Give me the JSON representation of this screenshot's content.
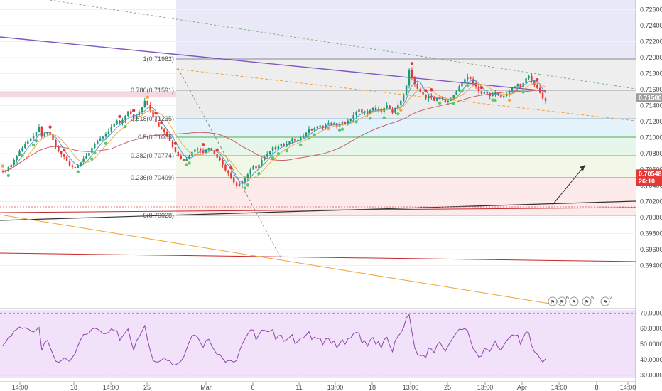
{
  "chart_data": {
    "type": "candlestick",
    "x_axis": {
      "labels": [
        "14:00",
        "18",
        "14:00",
        "25",
        "Mar",
        "6",
        "11",
        "13:00",
        "18",
        "13:00",
        "25",
        "13:00",
        "Apr",
        "14:00",
        "8",
        "14:00"
      ]
    },
    "price_axis": {
      "range": [
        0.6888,
        0.7272
      ],
      "ticks": [
        0.726,
        0.724,
        0.722,
        0.72,
        0.718,
        0.716,
        0.714,
        0.712,
        0.71,
        0.708,
        0.706,
        0.704,
        0.702,
        0.7,
        0.698,
        0.696,
        0.694
      ],
      "decimals": 5
    },
    "rsi_axis": {
      "range": [
        28,
        72
      ],
      "ticks": [
        70.0,
        60.0,
        50.0,
        40.0,
        30.0
      ],
      "labels": [
        "70.0000",
        "60.0000",
        "50.0000",
        "40.0000",
        "30.0000"
      ]
    },
    "price_tags": [
      {
        "price": 0.715,
        "text": "0.71500",
        "color": "#9e9e9e"
      },
      {
        "price": 0.70548,
        "text": "0.70548",
        "color": "#e53935"
      },
      {
        "price": 0.70452,
        "text": "26:10",
        "color": "#e53935"
      }
    ],
    "fibonacci": {
      "levels": [
        {
          "ratio": "1",
          "price": 0.71982,
          "label": "1(0.71982)"
        },
        {
          "ratio": "0.786",
          "price": 0.71591,
          "label": "0.786(0.71591)"
        },
        {
          "ratio": "0.618",
          "price": 0.71235,
          "label": "0.618(0.71235)"
        },
        {
          "ratio": "0.5",
          "price": 0.71005,
          "label": "0.5(0.71005)"
        },
        {
          "ratio": "0.382",
          "price": 0.70774,
          "label": "0.382(0.70774)"
        },
        {
          "ratio": "0.236",
          "price": 0.70499,
          "label": "0.236(0.70499)"
        },
        {
          "ratio": "0",
          "price": 0.70028,
          "label": "0(0.70028)"
        }
      ]
    },
    "candles": {
      "start": 0.7058,
      "bias": [
        -0.0001,
        0.0002,
        0.0004,
        0.0003,
        0.0006,
        0.0005,
        0.0006,
        0.0004,
        0.0005,
        0.0004,
        0.0003,
        0.0003,
        0.0005,
        0.0006,
        -0.0012,
        0.0004,
        0.0002,
        -0.0004,
        -0.0006,
        -0.0008,
        -0.0006,
        -0.0004,
        -0.0003,
        -0.0005,
        -0.0006,
        -0.0002,
        -0.0001,
        0.0003,
        0.0004,
        0.0005,
        0.0003,
        0.0004,
        0.0006,
        0.0005,
        0.0004,
        0.0003,
        0.0002,
        0.0003,
        0.0004,
        0.0006,
        0.0003,
        0.0004,
        -0.0003,
        0.0004,
        0.0005,
        0.0006,
        -0.0004,
        -0.0006,
        0.0005,
        0.0004,
        0.0006,
        0.0008,
        -0.0005,
        -0.0007,
        -0.0009,
        -0.0006,
        -0.0005,
        -0.0004,
        -0.0003,
        -0.0006,
        -0.0005,
        -0.0008,
        -0.0006,
        -0.0005,
        -0.0004,
        -0.0002,
        0.0002,
        0.0004,
        0.0005,
        0.0003,
        0.0001,
        -0.0002,
        -0.0003,
        0.0004,
        0.0002,
        -0.0003,
        -0.0004,
        -0.0005,
        -0.0003,
        -0.0006,
        -0.0007,
        -0.0004,
        -0.0005,
        -0.0006,
        -0.0004,
        0.0002,
        0.0003,
        0.0004,
        0.0005,
        0.0006,
        0.0004,
        -0.0003,
        0.0005,
        0.0006,
        0.0004,
        0.0003,
        0.0004,
        0.0005,
        -0.0003,
        0.0004,
        0.0003,
        -0.0002,
        0.0002,
        0.0003,
        0.0004,
        -0.0004,
        0.0002,
        0.0003,
        0.0002,
        0.0004,
        0.0005,
        -0.0002,
        0.0003,
        0.0001,
        0.0002,
        -0.0003,
        0.0004,
        0.0002,
        -0.0002,
        0.0002,
        -0.0004,
        0.0002,
        0.0003,
        -0.0002,
        0.0004,
        0.0002,
        0.0005,
        0.0004,
        0.0003,
        -0.0004,
        0.0002,
        -0.0003,
        0.0004,
        0.0003,
        -0.0003,
        0.0002,
        -0.0004,
        0.0005,
        0.0003,
        -0.0004,
        -0.0005,
        0.0006,
        0.0004,
        0.0005,
        0.0007,
        0.0012,
        0.002,
        -0.001,
        -0.0008,
        -0.0006,
        -0.0004,
        -0.0003,
        -0.0005,
        0.0003,
        -0.0002,
        -0.0004,
        0.0003,
        0.0002,
        -0.0003,
        -0.0004,
        0.0002,
        0.0003,
        0.0004,
        0.0005,
        0.0006,
        0.0004,
        0.0005,
        0.0003,
        -0.0003,
        -0.0005,
        -0.0004,
        -0.0006,
        -0.0003,
        0.0002,
        -0.0002,
        -0.0003,
        0.0002,
        0.0003,
        -0.0004,
        -0.0003,
        0.0002,
        0.0003,
        0.0003,
        0.0004,
        0.0002,
        0.0003,
        -0.0004,
        0.0005,
        0.0006,
        0.0003,
        -0.0006,
        -0.0005,
        -0.0004,
        -0.0006,
        -0.0007,
        -0.0003
      ]
    }
  },
  "events": {
    "glyphs": [
      "⚑",
      "⚑",
      "⚑",
      "⚑",
      "⚑"
    ],
    "counts": [
      "",
      "6",
      "",
      "5",
      "2"
    ]
  }
}
